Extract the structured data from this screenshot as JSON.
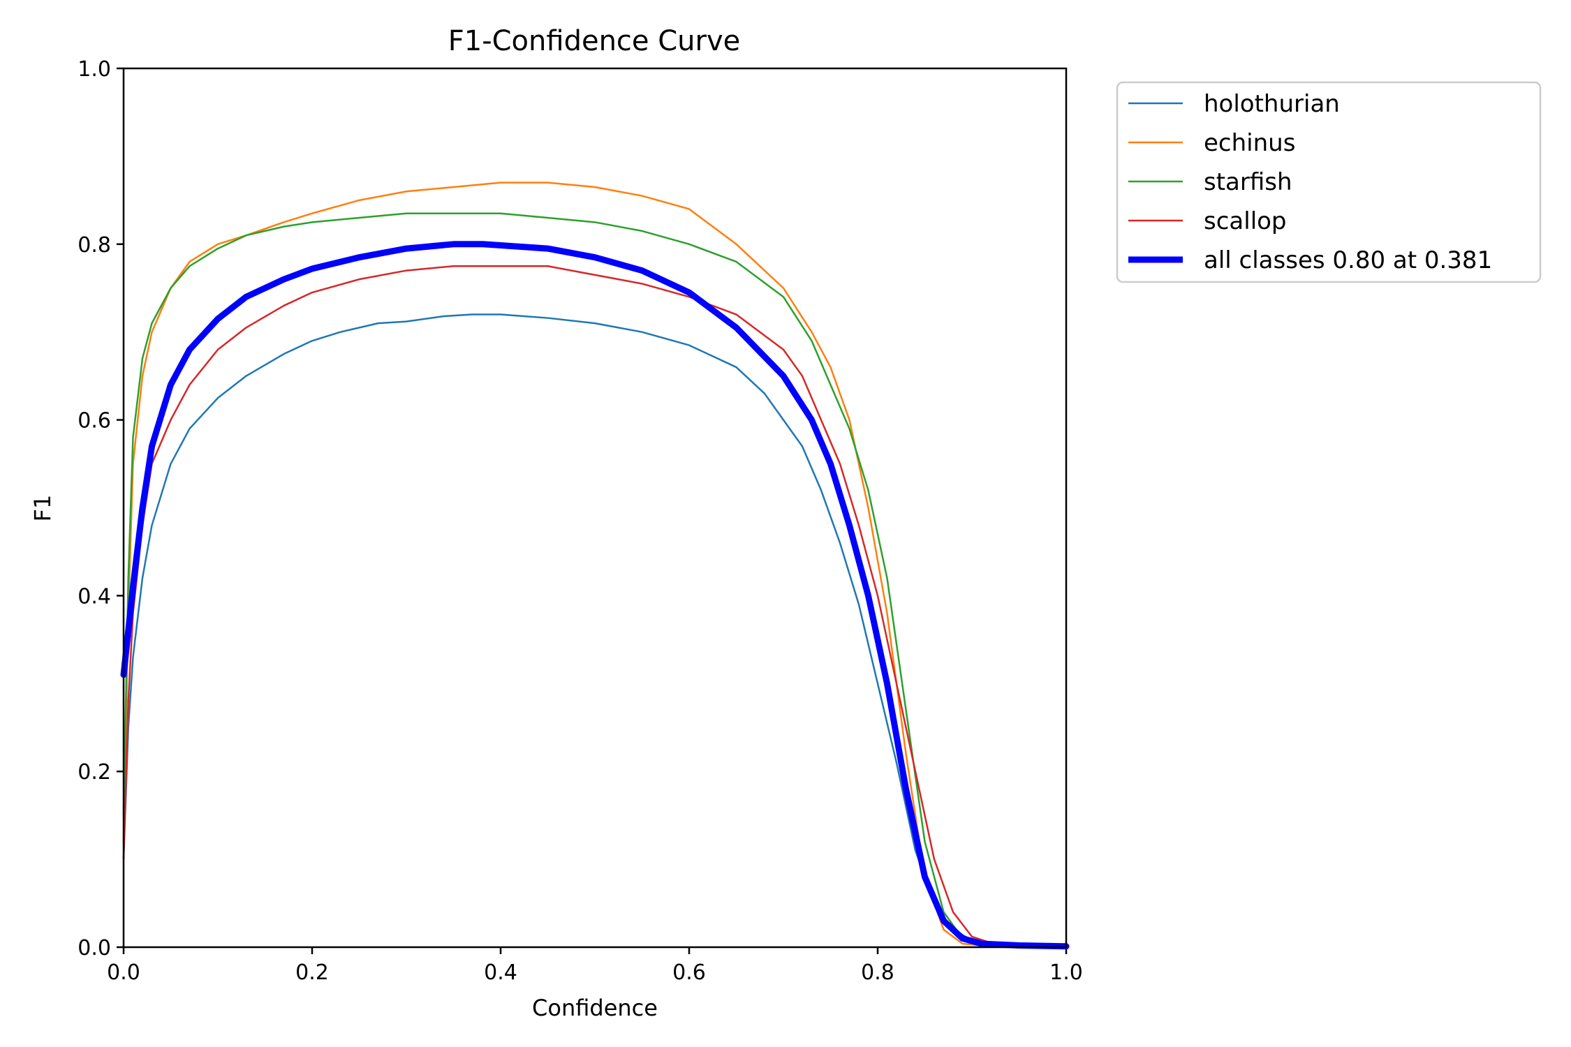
{
  "chart_data": {
    "type": "line",
    "title": "F1-Confidence Curve",
    "xlabel": "Confidence",
    "ylabel": "F1",
    "xlim": [
      0.0,
      1.0
    ],
    "ylim": [
      0.0,
      1.0
    ],
    "xticks": [
      "0.0",
      "0.2",
      "0.4",
      "0.6",
      "0.8",
      "1.0"
    ],
    "yticks": [
      "0.0",
      "0.2",
      "0.4",
      "0.6",
      "0.8",
      "1.0"
    ],
    "grid": false,
    "legend_position": "outside-upper-right",
    "series": [
      {
        "name": "holothurian",
        "color": "#1f77b4",
        "linewidth": "thin",
        "x": [
          0.0,
          0.005,
          0.01,
          0.02,
          0.03,
          0.05,
          0.07,
          0.1,
          0.13,
          0.17,
          0.2,
          0.23,
          0.27,
          0.3,
          0.34,
          0.37,
          0.4,
          0.45,
          0.5,
          0.55,
          0.6,
          0.65,
          0.68,
          0.7,
          0.72,
          0.74,
          0.76,
          0.78,
          0.8,
          0.82,
          0.84,
          0.86,
          0.88,
          0.9,
          0.92,
          0.95,
          1.0
        ],
        "y": [
          0.1,
          0.25,
          0.33,
          0.42,
          0.48,
          0.55,
          0.59,
          0.625,
          0.65,
          0.675,
          0.69,
          0.7,
          0.71,
          0.712,
          0.718,
          0.72,
          0.72,
          0.716,
          0.71,
          0.7,
          0.685,
          0.66,
          0.63,
          0.6,
          0.57,
          0.52,
          0.46,
          0.39,
          0.3,
          0.21,
          0.11,
          0.05,
          0.02,
          0.008,
          0.004,
          0.002,
          0.001
        ]
      },
      {
        "name": "echinus",
        "color": "#ff7f0e",
        "linewidth": "thin",
        "x": [
          0.0,
          0.005,
          0.01,
          0.02,
          0.03,
          0.05,
          0.07,
          0.1,
          0.13,
          0.17,
          0.2,
          0.25,
          0.3,
          0.35,
          0.4,
          0.45,
          0.5,
          0.55,
          0.6,
          0.65,
          0.7,
          0.73,
          0.75,
          0.77,
          0.79,
          0.81,
          0.83,
          0.85,
          0.87,
          0.89,
          0.91,
          0.95,
          1.0
        ],
        "y": [
          0.12,
          0.38,
          0.55,
          0.65,
          0.7,
          0.75,
          0.78,
          0.8,
          0.81,
          0.825,
          0.835,
          0.85,
          0.86,
          0.865,
          0.87,
          0.87,
          0.865,
          0.855,
          0.84,
          0.8,
          0.75,
          0.7,
          0.66,
          0.6,
          0.5,
          0.38,
          0.22,
          0.08,
          0.02,
          0.004,
          0.002,
          0.001,
          0.001
        ]
      },
      {
        "name": "starfish",
        "color": "#2ca02c",
        "linewidth": "thin",
        "x": [
          0.0,
          0.005,
          0.01,
          0.02,
          0.03,
          0.05,
          0.07,
          0.1,
          0.13,
          0.17,
          0.2,
          0.25,
          0.3,
          0.35,
          0.4,
          0.45,
          0.5,
          0.55,
          0.6,
          0.65,
          0.7,
          0.73,
          0.75,
          0.77,
          0.79,
          0.81,
          0.83,
          0.85,
          0.87,
          0.89,
          0.91,
          0.95,
          1.0
        ],
        "y": [
          0.15,
          0.42,
          0.58,
          0.67,
          0.71,
          0.75,
          0.775,
          0.795,
          0.81,
          0.82,
          0.825,
          0.83,
          0.835,
          0.835,
          0.835,
          0.83,
          0.825,
          0.815,
          0.8,
          0.78,
          0.74,
          0.69,
          0.64,
          0.59,
          0.52,
          0.42,
          0.27,
          0.12,
          0.04,
          0.01,
          0.004,
          0.002,
          0.001
        ]
      },
      {
        "name": "scallop",
        "color": "#d62728",
        "linewidth": "thin",
        "x": [
          0.0,
          0.005,
          0.01,
          0.02,
          0.03,
          0.05,
          0.07,
          0.1,
          0.13,
          0.17,
          0.2,
          0.25,
          0.3,
          0.35,
          0.4,
          0.45,
          0.5,
          0.55,
          0.6,
          0.65,
          0.7,
          0.72,
          0.74,
          0.76,
          0.78,
          0.8,
          0.82,
          0.84,
          0.86,
          0.88,
          0.9,
          0.92,
          0.95,
          1.0
        ],
        "y": [
          0.1,
          0.28,
          0.38,
          0.48,
          0.55,
          0.6,
          0.64,
          0.68,
          0.705,
          0.73,
          0.745,
          0.76,
          0.77,
          0.775,
          0.775,
          0.775,
          0.765,
          0.755,
          0.74,
          0.72,
          0.68,
          0.65,
          0.6,
          0.55,
          0.48,
          0.4,
          0.3,
          0.2,
          0.1,
          0.04,
          0.012,
          0.005,
          0.002,
          0.001
        ]
      },
      {
        "name": "all classes 0.80 at 0.381",
        "color": "#0000ff",
        "linewidth": "thick",
        "x": [
          0.0,
          0.005,
          0.01,
          0.02,
          0.03,
          0.05,
          0.07,
          0.1,
          0.13,
          0.17,
          0.2,
          0.25,
          0.3,
          0.35,
          0.381,
          0.45,
          0.5,
          0.55,
          0.6,
          0.65,
          0.7,
          0.73,
          0.75,
          0.77,
          0.79,
          0.81,
          0.83,
          0.85,
          0.87,
          0.89,
          0.91,
          0.95,
          1.0
        ],
        "y": [
          0.31,
          0.36,
          0.41,
          0.5,
          0.57,
          0.64,
          0.68,
          0.715,
          0.74,
          0.76,
          0.772,
          0.785,
          0.795,
          0.8,
          0.8,
          0.795,
          0.785,
          0.77,
          0.745,
          0.705,
          0.65,
          0.6,
          0.55,
          0.48,
          0.4,
          0.3,
          0.18,
          0.08,
          0.03,
          0.01,
          0.004,
          0.002,
          0.001
        ]
      }
    ]
  }
}
